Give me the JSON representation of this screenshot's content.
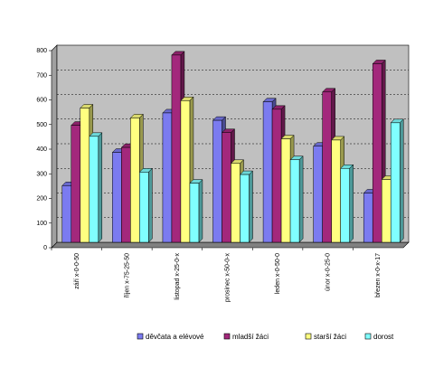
{
  "chart_data": {
    "type": "bar",
    "categories": [
      "září x-0-0-50",
      "říjen x-75-25-50",
      "listopad x-25-0-x",
      "prosinec x-50-0-x",
      "leden x-0-50-0",
      "únor x-0-25-0",
      "březen x-0-x-17"
    ],
    "series": [
      {
        "name": "děvčata a elévové",
        "values": [
          230,
          365,
          525,
          495,
          570,
          390,
          200
        ],
        "color": "#7b7bf0"
      },
      {
        "name": "mladší žáci",
        "values": [
          475,
          385,
          760,
          445,
          540,
          610,
          725
        ],
        "color": "#a3287c"
      },
      {
        "name": "starší žáci",
        "values": [
          545,
          505,
          575,
          320,
          420,
          415,
          255
        ],
        "color": "#ffff80"
      },
      {
        "name": "dorost",
        "values": [
          430,
          285,
          240,
          275,
          335,
          300,
          485
        ],
        "color": "#80ffff"
      }
    ],
    "title": "",
    "xlabel": "",
    "ylabel": "",
    "ylim": [
      0,
      800
    ],
    "yticks": [
      "0",
      "100",
      "200",
      "300",
      "400",
      "500",
      "600",
      "700",
      "800"
    ],
    "grid": "horizontal dashed",
    "legend_position": "bottom",
    "plot_background": "#c0c0c0"
  }
}
